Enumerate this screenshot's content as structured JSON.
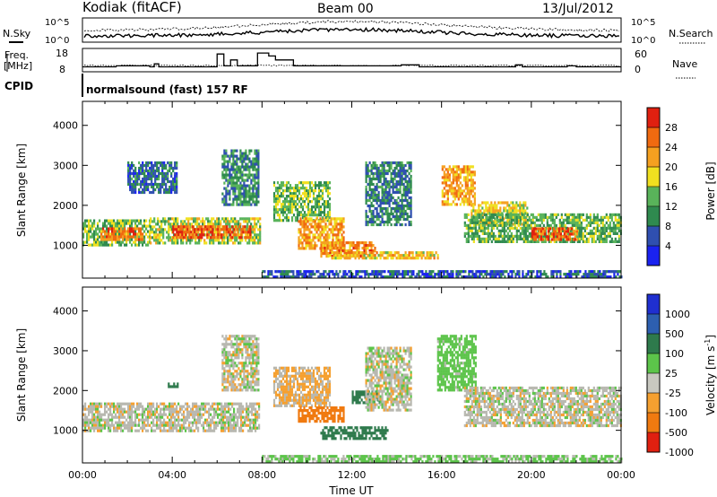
{
  "header": {
    "station": "Kodiak (fitACF)",
    "beam": "Beam 00",
    "date": "13/Jul/2012"
  },
  "strip_labels": {
    "nsky": "N.Sky",
    "nsearch": "N.Search",
    "freq_line1": "Freq.",
    "freq_line2": "[MHz]",
    "nave": "Nave",
    "cpid": "CPID",
    "cpid_value": "normalsound (fast) 157 RF",
    "noise_ticks_left": [
      "10^5",
      "10^0"
    ],
    "noise_ticks_right": [
      "10^5",
      "10^0"
    ],
    "freq_ticks": [
      "18",
      "8"
    ],
    "nave_ticks": [
      "60",
      "0"
    ]
  },
  "colors": {
    "power_scale": [
      "#1a22f0",
      "#2f4fb0",
      "#2f8a4f",
      "#59b35a",
      "#f0e020",
      "#f5a020",
      "#f06a10",
      "#e02010"
    ],
    "velocity_scale": [
      "#1f2fd0",
      "#2d5fb0",
      "#2e7a4c",
      "#5cc44a",
      "#c8c8c0",
      "#f5a030",
      "#f07a10",
      "#e02010"
    ],
    "ground_scatter": "#b8b8b0",
    "trace": "#000000"
  },
  "chart_data": [
    {
      "type": "heatmap",
      "name": "power",
      "title": "",
      "xlabel": "",
      "ylabel": "Slant Range [km]",
      "x_range_hours": [
        0,
        24
      ],
      "y_range_km": [
        180,
        4600
      ],
      "x_tick_labels": [
        "00:00",
        "04:00",
        "08:00",
        "12:00",
        "16:00",
        "20:00",
        "00:00"
      ],
      "y_ticks": [
        1000,
        2000,
        3000,
        4000
      ],
      "colorbar": {
        "label": "Power [dB]",
        "ticks": [
          "4",
          "8",
          "12",
          "16",
          "20",
          "24",
          "28"
        ],
        "min": 0,
        "max": 32
      },
      "regions": [
        {
          "t0": 0.0,
          "t1": 3.0,
          "r0": 1000,
          "r1": 1650,
          "level": 14
        },
        {
          "t0": 0.8,
          "t1": 2.7,
          "r0": 1150,
          "r1": 1450,
          "level": 24
        },
        {
          "t0": 3.0,
          "t1": 7.9,
          "r0": 1050,
          "r1": 1700,
          "level": 16
        },
        {
          "t0": 4.0,
          "t1": 7.5,
          "r0": 1200,
          "r1": 1500,
          "level": 27
        },
        {
          "t0": 6.2,
          "t1": 7.8,
          "r0": 2000,
          "r1": 3400,
          "level": 10
        },
        {
          "t0": 2.0,
          "t1": 4.2,
          "r0": 2300,
          "r1": 3100,
          "level": 8
        },
        {
          "t0": 8.5,
          "t1": 11.0,
          "r0": 1600,
          "r1": 2600,
          "level": 14
        },
        {
          "t0": 9.6,
          "t1": 11.6,
          "r0": 900,
          "r1": 1700,
          "level": 22
        },
        {
          "t0": 10.6,
          "t1": 13.0,
          "r0": 700,
          "r1": 1100,
          "level": 24
        },
        {
          "t0": 11.0,
          "t1": 15.8,
          "r0": 650,
          "r1": 850,
          "level": 20
        },
        {
          "t0": 12.6,
          "t1": 14.6,
          "r0": 1500,
          "r1": 3100,
          "level": 9
        },
        {
          "t0": 16.0,
          "t1": 17.5,
          "r0": 2000,
          "r1": 3000,
          "level": 22
        },
        {
          "t0": 17.3,
          "t1": 19.8,
          "r0": 1500,
          "r1": 2100,
          "level": 19
        },
        {
          "t0": 17.0,
          "t1": 24.0,
          "r0": 1100,
          "r1": 1800,
          "level": 13
        },
        {
          "t0": 20.0,
          "t1": 22.0,
          "r0": 1150,
          "r1": 1450,
          "level": 26
        },
        {
          "t0": 8.0,
          "t1": 24.0,
          "r0": 200,
          "r1": 380,
          "level": 6
        }
      ]
    },
    {
      "type": "heatmap",
      "name": "velocity",
      "title": "",
      "xlabel": "Time UT",
      "ylabel": "Slant Range [km]",
      "x_range_hours": [
        0,
        24
      ],
      "y_range_km": [
        180,
        4600
      ],
      "x_tick_labels": [
        "00:00",
        "04:00",
        "08:00",
        "12:00",
        "16:00",
        "20:00",
        "00:00"
      ],
      "y_ticks": [
        1000,
        2000,
        3000,
        4000
      ],
      "colorbar": {
        "label": "Velocity [m s",
        "ticks": [
          "1000",
          "500",
          "100",
          "25",
          "-25",
          "-100",
          "-500",
          "-1000"
        ]
      },
      "regions": [
        {
          "t0": 0.0,
          "t1": 7.9,
          "r0": 1000,
          "r1": 1700,
          "velocity": 0
        },
        {
          "t0": 6.2,
          "t1": 7.8,
          "r0": 2000,
          "r1": 3400,
          "velocity": 0
        },
        {
          "t0": 3.8,
          "t1": 4.2,
          "r0": 2100,
          "r1": 2200,
          "velocity": 150
        },
        {
          "t0": 8.5,
          "t1": 11.0,
          "r0": 1600,
          "r1": 2600,
          "velocity": -30
        },
        {
          "t0": 9.6,
          "t1": 11.6,
          "r0": 1200,
          "r1": 1600,
          "velocity": -200
        },
        {
          "t0": 10.6,
          "t1": 13.6,
          "r0": 800,
          "r1": 1100,
          "velocity": 150
        },
        {
          "t0": 12.0,
          "t1": 13.2,
          "r0": 1700,
          "r1": 2000,
          "velocity": 300
        },
        {
          "t0": 12.6,
          "t1": 14.6,
          "r0": 1500,
          "r1": 3100,
          "velocity": 0
        },
        {
          "t0": 15.8,
          "t1": 17.5,
          "r0": 2000,
          "r1": 3400,
          "velocity": 60
        },
        {
          "t0": 17.0,
          "t1": 24.0,
          "r0": 1100,
          "r1": 2100,
          "velocity": 0
        },
        {
          "t0": 8.0,
          "t1": 24.0,
          "r0": 200,
          "r1": 380,
          "velocity": 40
        }
      ]
    }
  ]
}
